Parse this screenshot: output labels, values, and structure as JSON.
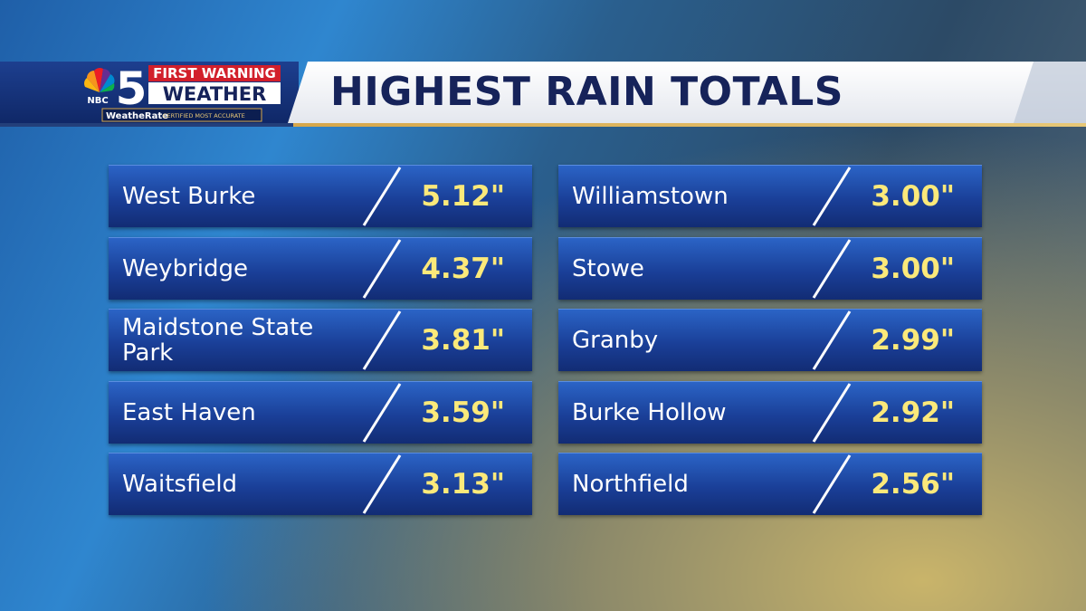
{
  "header": {
    "logo": {
      "network": "NBC",
      "channel": "5",
      "brand_top": "FIRST WARNING",
      "brand_bottom": "WEATHER",
      "tag_name": "WeatheRate",
      "tag_text": "CERTIFIED MOST ACCURATE"
    },
    "title": "HIGHEST RAIN TOTALS"
  },
  "table": {
    "columns": [
      [
        [
          "West Burke",
          "5.12\""
        ],
        [
          "Weybridge",
          "4.37\""
        ],
        [
          "Maidstone State Park",
          "3.81\""
        ],
        [
          "East Haven",
          "3.59\""
        ],
        [
          "Waitsfield",
          "3.13\""
        ]
      ],
      [
        [
          "Williamstown",
          "3.00\""
        ],
        [
          "Stowe",
          "3.00\""
        ],
        [
          "Granby",
          "2.99\""
        ],
        [
          "Burke Hollow",
          "2.92\""
        ],
        [
          "Northfield",
          "2.56\""
        ]
      ]
    ]
  }
}
